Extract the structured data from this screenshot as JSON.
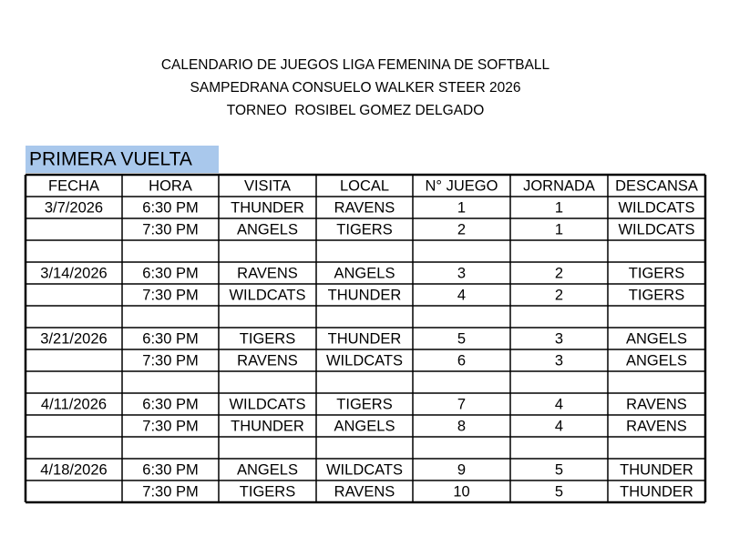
{
  "header": {
    "lines": [
      "CALENDARIO DE JUEGOS LIGA FEMENINA DE SOFTBALL",
      "SAMPEDRANA CONSUELO WALKER STEER 2026",
      "TORNEO  ROSIBEL GOMEZ DELGADO"
    ]
  },
  "section": "PRIMERA VUELTA",
  "table": {
    "columns": [
      "FECHA",
      "HORA",
      "VISITA",
      "LOCAL",
      "N° JUEGO",
      "JORNADA",
      "DESCANSA"
    ],
    "groups": [
      {
        "fecha": "3/7/2026",
        "games": [
          [
            "6:30 PM",
            "THUNDER",
            "RAVENS",
            1,
            1,
            "WILDCATS"
          ],
          [
            "7:30 PM",
            "ANGELS",
            "TIGERS",
            2,
            1,
            "WILDCATS"
          ]
        ]
      },
      {
        "fecha": "3/14/2026",
        "games": [
          [
            "6:30 PM",
            "RAVENS",
            "ANGELS",
            3,
            2,
            "TIGERS"
          ],
          [
            "7:30 PM",
            "WILDCATS",
            "THUNDER",
            4,
            2,
            "TIGERS"
          ]
        ]
      },
      {
        "fecha": "3/21/2026",
        "games": [
          [
            "6:30 PM",
            "TIGERS",
            "THUNDER",
            5,
            3,
            "ANGELS"
          ],
          [
            "7:30 PM",
            "RAVENS",
            "WILDCATS",
            6,
            3,
            "ANGELS"
          ]
        ]
      },
      {
        "fecha": "4/11/2026",
        "games": [
          [
            "6:30 PM",
            "WILDCATS",
            "TIGERS",
            7,
            4,
            "RAVENS"
          ],
          [
            "7:30 PM",
            "THUNDER",
            "ANGELS",
            8,
            4,
            "RAVENS"
          ]
        ]
      },
      {
        "fecha": "4/18/2026",
        "games": [
          [
            "6:30 PM",
            "ANGELS",
            "WILDCATS",
            9,
            5,
            "THUNDER"
          ],
          [
            "7:30 PM",
            "TIGERS",
            "RAVENS",
            10,
            5,
            "THUNDER"
          ]
        ]
      }
    ]
  }
}
